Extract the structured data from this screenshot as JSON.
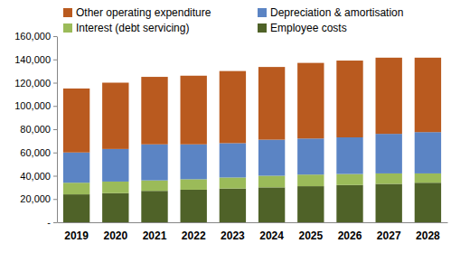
{
  "chart_data": {
    "type": "bar",
    "stacked": true,
    "grid": false,
    "legend": "top",
    "categories": [
      "2019",
      "2020",
      "2021",
      "2022",
      "2023",
      "2024",
      "2025",
      "2026",
      "2027",
      "2028"
    ],
    "series": [
      {
        "name": "Employee costs",
        "color": "#4f6228",
        "values": [
          24000,
          25000,
          27000,
          28000,
          29000,
          30000,
          31000,
          32000,
          33000,
          34000
        ]
      },
      {
        "name": "Interest (debt servicing)",
        "color": "#9bbb59",
        "values": [
          10000,
          10000,
          9000,
          9000,
          9500,
          10000,
          10000,
          9500,
          9000,
          8000
        ]
      },
      {
        "name": "Depreciation & amortisation",
        "color": "#5b84c4",
        "values": [
          26000,
          28000,
          31000,
          30000,
          29500,
          31000,
          31000,
          31500,
          34000,
          35500
        ]
      },
      {
        "name": "Other operating expenditure",
        "color": "#b95a1f",
        "values": [
          55000,
          57000,
          58000,
          59000,
          62000,
          62500,
          65000,
          66000,
          65500,
          64000
        ]
      }
    ],
    "ylim": [
      0,
      160000
    ],
    "yticks": [
      {
        "value": 0,
        "label": "-"
      },
      {
        "value": 20000,
        "label": "20,000"
      },
      {
        "value": 40000,
        "label": "40,000"
      },
      {
        "value": 60000,
        "label": "60,000"
      },
      {
        "value": 80000,
        "label": "80,000"
      },
      {
        "value": 100000,
        "label": "100,000"
      },
      {
        "value": 120000,
        "label": "120,000"
      },
      {
        "value": 140000,
        "label": "140,000"
      },
      {
        "value": 160000,
        "label": "160,000"
      }
    ]
  }
}
